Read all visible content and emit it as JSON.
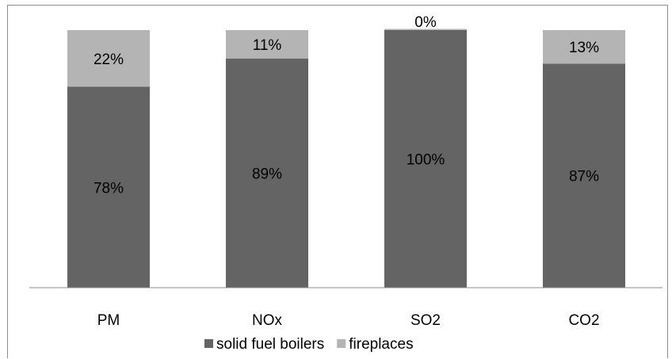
{
  "chart_data": {
    "type": "bar",
    "stacked": true,
    "percent_stacked": true,
    "categories": [
      "PM",
      "NOx",
      "SO2",
      "CO2"
    ],
    "series": [
      {
        "name": "solid fuel boilers",
        "values": [
          78,
          89,
          100,
          87
        ],
        "labels": [
          "78%",
          "89%",
          "100%",
          "87%"
        ],
        "color": "#646464"
      },
      {
        "name": "fireplaces",
        "values": [
          22,
          11,
          0,
          13
        ],
        "labels": [
          "22%",
          "11%",
          "0%",
          "13%"
        ],
        "color": "#b4b4b4"
      }
    ],
    "ylim": [
      0,
      100
    ],
    "grid": false,
    "legend_position": "bottom"
  }
}
